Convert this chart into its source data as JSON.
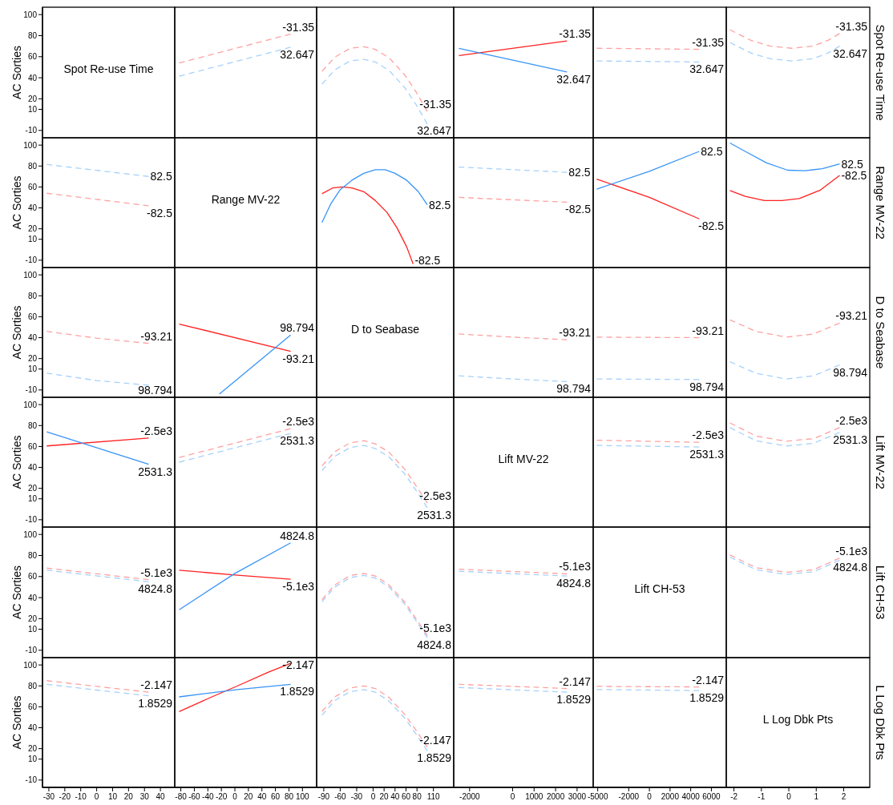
{
  "chart_data": [
    {
      "type": "line",
      "title": "Spot Re-use Time",
      "ylabel": "AC Sorties",
      "xlim": [
        -34,
        49
      ],
      "ylim": [
        -17,
        107
      ],
      "yticks": [
        -10,
        10,
        20,
        40,
        60,
        80,
        100
      ],
      "tick_labels": "y"
    },
    {
      "type": "line",
      "line_style": "dashed",
      "x": [
        -82.5,
        82.5
      ],
      "xlim": [
        -89,
        121
      ],
      "ylim": [
        -17,
        107
      ],
      "series": [
        {
          "name": "-31.35",
          "color": "#ffa0a0",
          "values": [
            54,
            81.5
          ]
        },
        {
          "name": "32.647",
          "color": "#a6d1fb",
          "values": [
            41.5,
            69
          ]
        }
      ]
    },
    {
      "type": "line",
      "line_style": "dashed",
      "x": [
        -93.21,
        -70,
        -42,
        -17,
        4,
        29,
        58,
        79,
        98.794
      ],
      "xlim": [
        -103,
        147
      ],
      "ylim": [
        -17,
        107
      ],
      "series": [
        {
          "name": "-31.35",
          "color": "#ffa0a0",
          "values": [
            46,
            59.5,
            68,
            69.5,
            67,
            59,
            42.5,
            26,
            8
          ]
        },
        {
          "name": "32.647",
          "color": "#a6d1fb",
          "values": [
            34,
            47.5,
            56,
            57.5,
            55,
            47,
            30.5,
            14,
            -4
          ]
        }
      ]
    },
    {
      "type": "line",
      "line_style": "solid",
      "x": [
        -2500,
        2531.3
      ],
      "xlim": [
        -2740,
        3750
      ],
      "ylim": [
        -17,
        107
      ],
      "series": [
        {
          "name": "-31.35",
          "color": "#ff2020",
          "values": [
            61,
            75
          ]
        },
        {
          "name": "32.647",
          "color": "#3894f7",
          "values": [
            68,
            45.5
          ]
        }
      ]
    },
    {
      "type": "line",
      "line_style": "dashed",
      "x": [
        -5100,
        4824.8
      ],
      "xlim": [
        -5440,
        7440
      ],
      "ylim": [
        -17,
        107
      ],
      "series": [
        {
          "name": "-31.35",
          "color": "#ffa0a0",
          "values": [
            68,
            67
          ]
        },
        {
          "name": "32.647",
          "color": "#a6d1fb",
          "values": [
            56,
            55
          ]
        }
      ]
    },
    {
      "type": "line",
      "line_style": "dashed",
      "x": [
        -2.147,
        -1.38,
        -0.67,
        0.1,
        0.87,
        1.43,
        1.8529
      ],
      "xlim": [
        -2.28,
        2.95
      ],
      "ylim": [
        -17,
        107
      ],
      "y2label": "Spot Re-use Time",
      "series": [
        {
          "name": "-31.35",
          "color": "#ffa0a0",
          "values": [
            85.5,
            75.5,
            70,
            68,
            70,
            75.5,
            82
          ]
        },
        {
          "name": "32.647",
          "color": "#a6d1fb",
          "values": [
            73.5,
            63.5,
            58,
            56,
            58,
            63.5,
            70
          ]
        }
      ]
    },
    {
      "type": "line",
      "line_style": "dashed",
      "x": [
        -31.35,
        32.647
      ],
      "xlim": [
        -34,
        49
      ],
      "ylim": [
        -17,
        107
      ],
      "yticks": [
        -10,
        10,
        20,
        40,
        60,
        80,
        100
      ],
      "tick_labels": "y",
      "ylabel": "AC Sorties",
      "series": [
        {
          "name": "-82.5",
          "color": "#ffa0a0",
          "values": [
            54,
            42
          ]
        },
        {
          "name": "82.5",
          "color": "#a6d1fb",
          "values": [
            81.5,
            70
          ]
        }
      ]
    },
    {
      "type": "other",
      "title": "Range MV-22"
    },
    {
      "type": "line",
      "line_style": "solid",
      "xlim": [
        -103,
        147
      ],
      "ylim": [
        -17,
        107
      ],
      "series": [
        {
          "name": "-82.5",
          "color": "#ff2020",
          "x": [
            -93.21,
            -74,
            -56,
            -38.5,
            -17,
            4,
            25.5,
            43.5,
            61,
            73
          ],
          "values": [
            53.5,
            59,
            60,
            59,
            55.5,
            47,
            35.5,
            21,
            3,
            -13.5
          ]
        },
        {
          "name": "82.5",
          "color": "#3894f7",
          "x": [
            -93.21,
            -77.5,
            -60,
            -38.5,
            -17,
            4,
            22,
            40,
            61,
            82.5,
            98.794
          ],
          "values": [
            26,
            43.5,
            57.5,
            66.5,
            73,
            76.5,
            76.5,
            73,
            66.5,
            55.5,
            43
          ]
        }
      ]
    },
    {
      "type": "line",
      "line_style": "dashed",
      "x": [
        -2500,
        2531.3
      ],
      "xlim": [
        -2740,
        3750
      ],
      "ylim": [
        -17,
        107
      ],
      "series": [
        {
          "name": "-82.5",
          "color": "#ffa0a0",
          "values": [
            50,
            45.5
          ]
        },
        {
          "name": "82.5",
          "color": "#a6d1fb",
          "values": [
            79,
            74
          ]
        }
      ]
    },
    {
      "type": "line",
      "line_style": "solid",
      "x": [
        -5100,
        0,
        4824.8
      ],
      "xlim": [
        -5440,
        7440
      ],
      "ylim": [
        -17,
        107
      ],
      "series": [
        {
          "name": "-82.5",
          "color": "#ff2020",
          "values": [
            67.5,
            50,
            29.5
          ]
        },
        {
          "name": "82.5",
          "color": "#3894f7",
          "values": [
            58,
            75,
            94
          ]
        }
      ]
    },
    {
      "type": "line",
      "line_style": "solid",
      "xlim": [
        -2.28,
        2.95
      ],
      "ylim": [
        -17,
        107
      ],
      "y2label": "Range MV-22",
      "series": [
        {
          "name": "-82.5",
          "color": "#ff2020",
          "x": [
            -2.147,
            -1.59,
            -0.89,
            -0.25,
            0.38,
            1.15,
            1.8529
          ],
          "values": [
            56.5,
            51,
            47,
            47,
            49,
            57,
            71
          ]
        },
        {
          "name": "82.5",
          "color": "#3894f7",
          "x": [
            -2.147,
            -1.59,
            -0.81,
            -0.04,
            0.59,
            1.22,
            1.8529
          ],
          "values": [
            102,
            94,
            83,
            76,
            75.5,
            77.5,
            82
          ]
        }
      ]
    },
    {
      "type": "line",
      "line_style": "dashed",
      "x": [
        -31.35,
        0,
        32.647
      ],
      "xlim": [
        -34,
        49
      ],
      "ylim": [
        -17,
        107
      ],
      "yticks": [
        -10,
        10,
        20,
        40,
        60,
        80,
        100
      ],
      "tick_labels": "y",
      "ylabel": "AC Sorties",
      "series": [
        {
          "name": "-93.21",
          "color": "#ffa0a0",
          "values": [
            46,
            39.5,
            34.5
          ]
        },
        {
          "name": "98.794",
          "color": "#a6d1fb",
          "values": [
            6,
            -1,
            -5.5
          ]
        }
      ]
    },
    {
      "type": "line",
      "line_style": "solid",
      "xlim": [
        -89,
        121
      ],
      "ylim": [
        -17,
        107
      ],
      "series": [
        {
          "name": "-93.21",
          "color": "#ff2020",
          "x": [
            -82.5,
            82.5
          ],
          "values": [
            53,
            27
          ]
        },
        {
          "name": "98.794",
          "color": "#3894f7",
          "x": [
            -23,
            82.5
          ],
          "values": [
            -14,
            42.5
          ]
        }
      ]
    },
    {
      "type": "other",
      "title": "D to Seabase"
    },
    {
      "type": "line",
      "line_style": "dashed",
      "x": [
        -2500,
        0,
        2531.3
      ],
      "xlim": [
        -2740,
        3750
      ],
      "ylim": [
        -17,
        107
      ],
      "series": [
        {
          "name": "-93.21",
          "color": "#ffa0a0",
          "values": [
            43.5,
            40.5,
            38
          ]
        },
        {
          "name": "98.794",
          "color": "#a6d1fb",
          "values": [
            3.5,
            0.5,
            -2
          ]
        }
      ]
    },
    {
      "type": "line",
      "line_style": "dashed",
      "x": [
        -5100,
        4824.8
      ],
      "xlim": [
        -5440,
        7440
      ],
      "ylim": [
        -17,
        107
      ],
      "series": [
        {
          "name": "-93.21",
          "color": "#ffa0a0",
          "values": [
            40.5,
            40
          ]
        },
        {
          "name": "98.794",
          "color": "#a6d1fb",
          "values": [
            0.5,
            0
          ]
        }
      ]
    },
    {
      "type": "line",
      "line_style": "dashed",
      "x": [
        -2.147,
        -1.2,
        -0.1,
        0.9,
        1.8529
      ],
      "xlim": [
        -2.28,
        2.95
      ],
      "ylim": [
        -17,
        107
      ],
      "y2label": "D to Seabase",
      "series": [
        {
          "name": "-93.21",
          "color": "#ffa0a0",
          "values": [
            57,
            46,
            40.5,
            43.5,
            54
          ]
        },
        {
          "name": "98.794",
          "color": "#a6d1fb",
          "values": [
            17,
            6,
            0.5,
            3.5,
            14
          ]
        }
      ]
    },
    {
      "type": "line",
      "line_style": "solid",
      "x": [
        -31.35,
        32.647
      ],
      "xlim": [
        -34,
        49
      ],
      "ylim": [
        -17,
        107
      ],
      "yticks": [
        -10,
        10,
        20,
        40,
        60,
        80,
        100
      ],
      "tick_labels": "y",
      "ylabel": "AC Sorties",
      "series": [
        {
          "name": "-2.5e3",
          "color": "#ff2020",
          "values": [
            60.5,
            68
          ]
        },
        {
          "name": "2531.3",
          "color": "#3894f7",
          "values": [
            74,
            43
          ]
        }
      ]
    },
    {
      "type": "line",
      "line_style": "dashed",
      "x": [
        -82.5,
        82.5
      ],
      "xlim": [
        -89,
        121
      ],
      "ylim": [
        -17,
        107
      ],
      "series": [
        {
          "name": "-2.5e3",
          "color": "#ffa0a0",
          "values": [
            49.5,
            77
          ]
        },
        {
          "name": "2531.3",
          "color": "#a6d1fb",
          "values": [
            45,
            72.5
          ]
        }
      ]
    },
    {
      "type": "line",
      "line_style": "dashed",
      "x": [
        -93.21,
        -70,
        -42,
        -17,
        4,
        29,
        58,
        79,
        98.794
      ],
      "xlim": [
        -103,
        147
      ],
      "ylim": [
        -17,
        107
      ],
      "series": [
        {
          "name": "-2.5e3",
          "color": "#ffa0a0",
          "values": [
            41.5,
            55,
            63.5,
            65.5,
            62.5,
            54.5,
            38,
            22,
            6
          ]
        },
        {
          "name": "2531.3",
          "color": "#a6d1fb",
          "values": [
            37,
            50.5,
            59,
            61,
            58,
            50,
            33.5,
            17.5,
            1.5
          ]
        }
      ]
    },
    {
      "type": "other",
      "title": "Lift MV-22"
    },
    {
      "type": "line",
      "line_style": "dashed",
      "x": [
        -5100,
        4824.8
      ],
      "xlim": [
        -5440,
        7440
      ],
      "ylim": [
        -17,
        107
      ],
      "series": [
        {
          "name": "-2.5e3",
          "color": "#ffa0a0",
          "values": [
            66,
            64
          ]
        },
        {
          "name": "2531.3",
          "color": "#a6d1fb",
          "values": [
            61,
            59.5
          ]
        }
      ]
    },
    {
      "type": "line",
      "line_style": "dashed",
      "x": [
        -2.147,
        -1.2,
        -0.1,
        0.9,
        1.8529
      ],
      "xlim": [
        -2.28,
        2.95
      ],
      "ylim": [
        -17,
        107
      ],
      "y2label": "Lift MV-22",
      "series": [
        {
          "name": "-2.5e3",
          "color": "#ffa0a0",
          "values": [
            82.5,
            70,
            65,
            67.5,
            78
          ]
        },
        {
          "name": "2531.3",
          "color": "#a6d1fb",
          "values": [
            78,
            65.5,
            60.5,
            63,
            73.5
          ]
        }
      ]
    },
    {
      "type": "line",
      "line_style": "dashed",
      "x": [
        -31.35,
        32.647
      ],
      "xlim": [
        -34,
        49
      ],
      "ylim": [
        -17,
        107
      ],
      "yticks": [
        -10,
        10,
        20,
        40,
        60,
        80,
        100
      ],
      "tick_labels": "y",
      "ylabel": "AC Sorties",
      "series": [
        {
          "name": "-5.1e3",
          "color": "#ffa0a0",
          "values": [
            68,
            57
          ]
        },
        {
          "name": "4824.8",
          "color": "#a6d1fb",
          "values": [
            66,
            55
          ]
        }
      ]
    },
    {
      "type": "line",
      "line_style": "solid",
      "x": [
        -82.5,
        0,
        82.5
      ],
      "xlim": [
        -89,
        121
      ],
      "ylim": [
        -17,
        107
      ],
      "series": [
        {
          "name": "-5.1e3",
          "color": "#ff2020",
          "values": [
            66,
            61.5,
            57.5
          ]
        },
        {
          "name": "4824.8",
          "color": "#3894f7",
          "values": [
            28.5,
            63,
            92
          ]
        }
      ]
    },
    {
      "type": "line",
      "line_style": "dashed",
      "x": [
        -93.21,
        -70,
        -42,
        -17,
        4,
        29,
        58,
        79,
        98.794
      ],
      "xlim": [
        -103,
        147
      ],
      "ylim": [
        -17,
        107
      ],
      "series": [
        {
          "name": "-5.1e3",
          "color": "#ffa0a0",
          "values": [
            38,
            52,
            61,
            63,
            60.5,
            52,
            35.5,
            19.5,
            4
          ]
        },
        {
          "name": "4824.8",
          "color": "#a6d1fb",
          "values": [
            36,
            50,
            59,
            61,
            58.5,
            50,
            33.5,
            17.5,
            2
          ]
        }
      ]
    },
    {
      "type": "line",
      "line_style": "dashed",
      "x": [
        -2500,
        2531.3
      ],
      "xlim": [
        -2740,
        3750
      ],
      "ylim": [
        -17,
        107
      ],
      "series": [
        {
          "name": "-5.1e3",
          "color": "#ffa0a0",
          "values": [
            67,
            62.5
          ]
        },
        {
          "name": "4824.8",
          "color": "#a6d1fb",
          "values": [
            65,
            60.5
          ]
        }
      ]
    },
    {
      "type": "other",
      "title": "Lift CH-53"
    },
    {
      "type": "line",
      "line_style": "dashed",
      "x": [
        -2.147,
        -1.2,
        -0.1,
        0.9,
        1.8529
      ],
      "xlim": [
        -2.28,
        2.95
      ],
      "ylim": [
        -17,
        107
      ],
      "y2label": "Lift CH-53",
      "series": [
        {
          "name": "-5.1e3",
          "color": "#ffa0a0",
          "values": [
            80.5,
            68.5,
            64,
            66.5,
            77.5
          ]
        },
        {
          "name": "4824.8",
          "color": "#a6d1fb",
          "values": [
            78.5,
            66.5,
            62,
            64.5,
            75.5
          ]
        }
      ]
    },
    {
      "type": "line",
      "line_style": "dashed",
      "x": [
        -31.35,
        0,
        32.647
      ],
      "xlim": [
        -34,
        49
      ],
      "ylim": [
        -17,
        107
      ],
      "xticks": [
        -30,
        -20,
        -10,
        0,
        10,
        20,
        30,
        40
      ],
      "yticks": [
        -10,
        10,
        20,
        40,
        60,
        80,
        100
      ],
      "ylabel": "AC Sorties",
      "series": [
        {
          "name": "-2.147",
          "color": "#ffa0a0",
          "values": [
            85,
            79.5,
            74
          ]
        },
        {
          "name": "1.8529",
          "color": "#a6d1fb",
          "values": [
            81.5,
            76,
            70.5
          ]
        }
      ]
    },
    {
      "type": "line",
      "line_style": "solid",
      "xlim": [
        -89,
        121
      ],
      "ylim": [
        -17,
        107
      ],
      "xticks": [
        -80,
        -60,
        -40,
        -20,
        0,
        20,
        40,
        60,
        80,
        100
      ],
      "tick_labels": "x",
      "series": [
        {
          "name": "-2.147",
          "color": "#ff2020",
          "x": [
            -82.5,
            -34,
            4,
            49,
            82.5
          ],
          "values": [
            55.5,
            69.5,
            80,
            93,
            101.5
          ]
        },
        {
          "name": "1.8529",
          "color": "#3894f7",
          "x": [
            -82.5,
            4,
            82.5
          ],
          "values": [
            69.5,
            76.5,
            81.5
          ]
        }
      ]
    },
    {
      "type": "line",
      "line_style": "dashed",
      "x": [
        -93.21,
        -70,
        -42,
        -17,
        4,
        29,
        58,
        79,
        98.794
      ],
      "xlim": [
        -103,
        147
      ],
      "ylim": [
        -17,
        107
      ],
      "xticks": [
        -90,
        -60,
        -30,
        0,
        20,
        40,
        60,
        80,
        110
      ],
      "tick_labels": "x",
      "series": [
        {
          "name": "-2.147",
          "color": "#ffa0a0",
          "values": [
            55.5,
            69.5,
            78,
            80,
            77.5,
            69,
            52.5,
            37,
            21.5
          ]
        },
        {
          "name": "1.8529",
          "color": "#a6d1fb",
          "values": [
            52,
            66,
            74.5,
            76.5,
            74,
            65.5,
            49,
            33.5,
            18
          ]
        }
      ]
    },
    {
      "type": "line",
      "line_style": "dashed",
      "x": [
        -2500,
        2531.3
      ],
      "xlim": [
        -2740,
        3750
      ],
      "ylim": [
        -17,
        107
      ],
      "xticks": [
        -2000,
        0,
        1000,
        2000,
        3000
      ],
      "tick_labels": "x",
      "series": [
        {
          "name": "-2.147",
          "color": "#ffa0a0",
          "values": [
            81.5,
            77.5
          ]
        },
        {
          "name": "1.8529",
          "color": "#a6d1fb",
          "values": [
            78.5,
            74
          ]
        }
      ]
    },
    {
      "type": "line",
      "line_style": "dashed",
      "x": [
        -5100,
        4824.8
      ],
      "xlim": [
        -5440,
        7440
      ],
      "ylim": [
        -17,
        107
      ],
      "xticks": [
        -5000,
        -2000,
        0,
        2000,
        4000,
        6000
      ],
      "tick_labels": "x",
      "series": [
        {
          "name": "-2.147",
          "color": "#ffa0a0",
          "values": [
            79.5,
            79
          ]
        },
        {
          "name": "1.8529",
          "color": "#a6d1fb",
          "values": [
            76.5,
            75.5
          ]
        }
      ]
    },
    {
      "type": "line",
      "title": "L Log Dbk Pts",
      "y2label": "L Log Dbk Pts",
      "xlim": [
        -2.28,
        2.95
      ],
      "ylim": [
        -17,
        107
      ],
      "xticks": [
        -2,
        -1,
        0,
        1,
        2
      ],
      "tick_labels": "x"
    }
  ]
}
